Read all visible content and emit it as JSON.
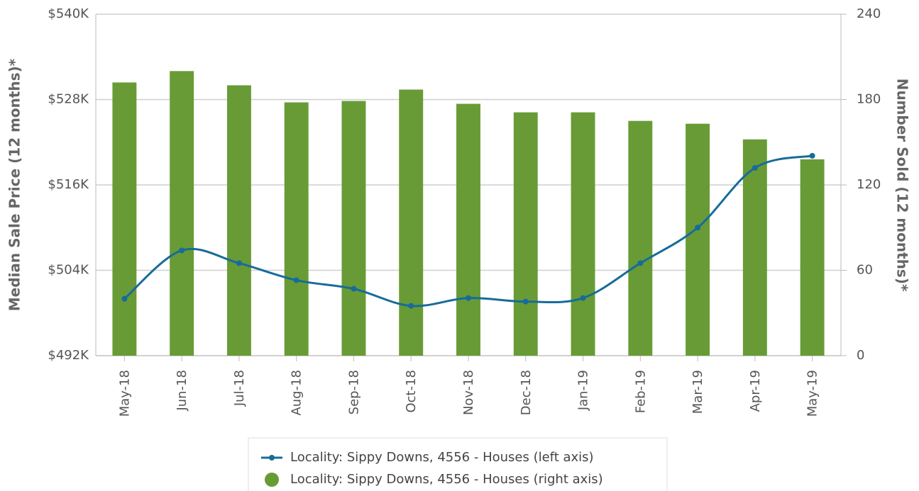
{
  "chart_data": {
    "type": "bar",
    "categories": [
      "May-18",
      "Jun-18",
      "Jul-18",
      "Aug-18",
      "Sep-18",
      "Oct-18",
      "Nov-18",
      "Dec-18",
      "Jan-19",
      "Feb-19",
      "Mar-19",
      "Apr-19",
      "May-19"
    ],
    "series": [
      {
        "name": "Locality: Sippy Downs, 4556 - Houses (right axis)",
        "type": "bar",
        "axis": "y2",
        "color": "#689b35",
        "values": [
          192,
          200,
          190,
          178,
          179,
          187,
          177,
          171,
          171,
          165,
          163,
          152,
          138
        ]
      },
      {
        "name": "Locality: Sippy Downs, 4556 - Houses (left axis)",
        "type": "line",
        "axis": "y",
        "color": "#176b9b",
        "values": [
          500000,
          506800,
          505000,
          502600,
          501400,
          499000,
          500100,
          499600,
          500100,
          505000,
          510000,
          518400,
          520100
        ]
      }
    ],
    "ylabel": "Median Sale Price (12 months)*",
    "y2label": "Number Sold (12 months)*",
    "ylim": [
      492000,
      540000
    ],
    "yticks": [
      {
        "value": 492000,
        "label": "$492K"
      },
      {
        "value": 504000,
        "label": "$504K"
      },
      {
        "value": 516000,
        "label": "$516K"
      },
      {
        "value": 528000,
        "label": "$528K"
      },
      {
        "value": 540000,
        "label": "$540K"
      }
    ],
    "y2lim": [
      0,
      240
    ],
    "y2ticks": [
      0,
      60,
      120,
      180,
      240
    ],
    "grid": true
  }
}
